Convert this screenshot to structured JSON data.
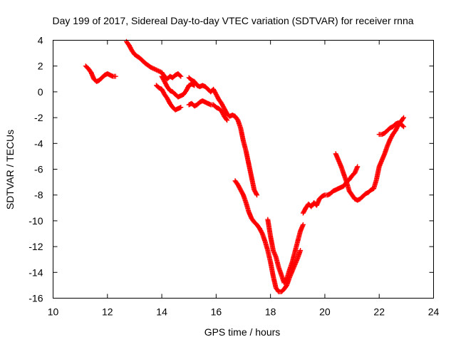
{
  "chart_data": {
    "type": "scatter",
    "title": "Day 199 of 2017, Sidereal Day-to-day VTEC variation (SDTVAR) for receiver rnna",
    "xlabel": "GPS time / hours",
    "ylabel": "SDTVAR / TECUs",
    "xlim": [
      10,
      24
    ],
    "ylim": [
      -16,
      4
    ],
    "x_ticks": [
      10,
      12,
      14,
      16,
      18,
      20,
      22,
      24
    ],
    "y_ticks": [
      4,
      2,
      0,
      -2,
      -4,
      -6,
      -8,
      -10,
      -12,
      -14,
      -16
    ],
    "x_tick_labels": [
      "10",
      "12",
      "14",
      "16",
      "18",
      "20",
      "22",
      "24"
    ],
    "y_tick_labels": [
      "4",
      "2",
      "0",
      "-2",
      "-4",
      "-6",
      "-8",
      "-10",
      "-12",
      "-14",
      "-16"
    ],
    "grid": false,
    "marker": "plus",
    "marker_color": "#ff0000",
    "series": [
      {
        "segments": [
          [
            [
              11.2,
              2.0
            ],
            [
              11.3,
              1.8
            ],
            [
              11.4,
              1.5
            ],
            [
              11.5,
              1.0
            ],
            [
              11.6,
              0.8
            ],
            [
              11.7,
              0.9
            ],
            [
              11.8,
              1.1
            ],
            [
              11.9,
              1.3
            ],
            [
              12.0,
              1.4
            ],
            [
              12.1,
              1.3
            ],
            [
              12.2,
              1.2
            ],
            [
              12.3,
              1.2
            ]
          ],
          [
            [
              12.7,
              3.9
            ],
            [
              12.8,
              3.6
            ],
            [
              12.9,
              3.2
            ],
            [
              13.0,
              2.9
            ],
            [
              13.2,
              2.6
            ],
            [
              13.4,
              2.2
            ],
            [
              13.6,
              1.9
            ],
            [
              13.8,
              1.7
            ],
            [
              14.0,
              1.5
            ],
            [
              14.1,
              1.2
            ],
            [
              14.2,
              1.0
            ],
            [
              14.3,
              1.2
            ],
            [
              14.4,
              1.1
            ],
            [
              14.5,
              1.3
            ],
            [
              14.6,
              1.4
            ],
            [
              14.7,
              1.2
            ]
          ],
          [
            [
              13.8,
              0.5
            ],
            [
              13.9,
              0.3
            ],
            [
              14.0,
              0.2
            ],
            [
              14.1,
              -0.2
            ],
            [
              14.2,
              -0.5
            ],
            [
              14.3,
              -0.9
            ],
            [
              14.4,
              -1.2
            ],
            [
              14.5,
              -1.4
            ],
            [
              14.6,
              -1.3
            ],
            [
              14.7,
              -1.2
            ]
          ],
          [
            [
              14.0,
              1.2
            ],
            [
              14.1,
              0.8
            ],
            [
              14.2,
              0.4
            ],
            [
              14.3,
              0.1
            ],
            [
              14.4,
              0.0
            ],
            [
              14.5,
              -0.2
            ],
            [
              14.6,
              -0.4
            ],
            [
              14.7,
              -0.3
            ],
            [
              14.8,
              -0.2
            ],
            [
              14.9,
              0.1
            ],
            [
              15.0,
              0.5
            ],
            [
              15.1,
              0.6
            ],
            [
              15.2,
              0.5
            ]
          ],
          [
            [
              15.0,
              1.1
            ],
            [
              15.1,
              0.9
            ],
            [
              15.2,
              0.8
            ],
            [
              15.3,
              0.5
            ],
            [
              15.4,
              0.4
            ],
            [
              15.5,
              0.5
            ],
            [
              15.6,
              0.4
            ],
            [
              15.7,
              0.2
            ],
            [
              15.8,
              0.0
            ],
            [
              15.9,
              0.2
            ],
            [
              16.0,
              -0.2
            ],
            [
              16.1,
              -0.6
            ],
            [
              16.2,
              -0.9
            ],
            [
              16.3,
              -1.3
            ],
            [
              16.4,
              -1.7
            ],
            [
              16.5,
              -1.9
            ],
            [
              16.6,
              -1.8
            ],
            [
              16.7,
              -1.9
            ],
            [
              16.8,
              -2.2
            ],
            [
              16.9,
              -2.8
            ],
            [
              17.0,
              -3.8
            ],
            [
              17.1,
              -4.6
            ],
            [
              17.2,
              -5.6
            ],
            [
              17.3,
              -6.6
            ],
            [
              17.4,
              -7.6
            ],
            [
              17.5,
              -8.0
            ]
          ],
          [
            [
              15.0,
              -1.0
            ],
            [
              15.1,
              -0.9
            ],
            [
              15.2,
              -1.1
            ],
            [
              15.3,
              -1.0
            ],
            [
              15.4,
              -0.8
            ],
            [
              15.5,
              -0.7
            ],
            [
              15.6,
              -0.8
            ],
            [
              15.7,
              -0.9
            ],
            [
              15.8,
              -1.0
            ],
            [
              15.9,
              -1.0
            ],
            [
              16.0,
              -1.2
            ],
            [
              16.1,
              -1.3
            ],
            [
              16.2,
              -1.5
            ],
            [
              16.3,
              -1.9
            ],
            [
              16.4,
              -2.2
            ]
          ],
          [
            [
              16.7,
              -6.9
            ],
            [
              16.8,
              -7.2
            ],
            [
              16.9,
              -7.6
            ],
            [
              17.0,
              -8.0
            ],
            [
              17.1,
              -8.6
            ],
            [
              17.2,
              -9.3
            ],
            [
              17.3,
              -9.8
            ],
            [
              17.4,
              -10.1
            ],
            [
              17.5,
              -10.3
            ],
            [
              17.6,
              -10.6
            ],
            [
              17.7,
              -11.0
            ],
            [
              17.8,
              -11.6
            ],
            [
              17.9,
              -12.3
            ],
            [
              18.0,
              -13.2
            ],
            [
              18.1,
              -14.3
            ],
            [
              18.2,
              -15.2
            ],
            [
              18.3,
              -15.5
            ],
            [
              18.4,
              -15.5
            ],
            [
              18.5,
              -15.3
            ],
            [
              18.6,
              -15.0
            ],
            [
              18.7,
              -14.4
            ],
            [
              18.8,
              -13.9
            ],
            [
              18.9,
              -13.4
            ],
            [
              19.0,
              -12.9
            ],
            [
              19.1,
              -12.3
            ]
          ],
          [
            [
              17.9,
              -9.9
            ],
            [
              18.0,
              -11.2
            ],
            [
              18.1,
              -12.3
            ],
            [
              18.2,
              -12.8
            ],
            [
              18.3,
              -13.6
            ],
            [
              18.4,
              -14.2
            ],
            [
              18.5,
              -14.8
            ],
            [
              18.6,
              -14.5
            ],
            [
              18.7,
              -13.8
            ],
            [
              18.8,
              -13.2
            ],
            [
              18.9,
              -12.4
            ],
            [
              19.0,
              -11.6
            ],
            [
              19.1,
              -10.8
            ],
            [
              19.2,
              -10.3
            ]
          ],
          [
            [
              19.2,
              -9.4
            ],
            [
              19.3,
              -9.0
            ],
            [
              19.4,
              -8.7
            ],
            [
              19.5,
              -8.9
            ],
            [
              19.6,
              -8.6
            ],
            [
              19.7,
              -8.8
            ],
            [
              19.8,
              -8.3
            ],
            [
              19.9,
              -8.1
            ],
            [
              20.0,
              -8.0
            ],
            [
              20.1,
              -8.0
            ],
            [
              20.2,
              -7.9
            ],
            [
              20.3,
              -7.7
            ],
            [
              20.4,
              -7.6
            ],
            [
              20.5,
              -7.5
            ],
            [
              20.6,
              -7.4
            ],
            [
              20.7,
              -7.3
            ],
            [
              20.8,
              -7.0
            ],
            [
              20.9,
              -6.8
            ],
            [
              21.0,
              -6.5
            ],
            [
              21.1,
              -6.3
            ],
            [
              21.2,
              -5.8
            ]
          ],
          [
            [
              20.4,
              -4.8
            ],
            [
              20.5,
              -5.3
            ],
            [
              20.6,
              -5.8
            ],
            [
              20.7,
              -6.4
            ],
            [
              20.8,
              -7.0
            ],
            [
              20.9,
              -7.7
            ],
            [
              21.0,
              -8.0
            ],
            [
              21.1,
              -8.3
            ],
            [
              21.2,
              -8.4
            ],
            [
              21.3,
              -8.3
            ],
            [
              21.4,
              -8.1
            ],
            [
              21.5,
              -7.9
            ],
            [
              21.6,
              -7.8
            ],
            [
              21.7,
              -7.6
            ],
            [
              21.8,
              -7.5
            ],
            [
              21.9,
              -6.8
            ],
            [
              22.0,
              -5.8
            ],
            [
              22.1,
              -5.3
            ],
            [
              22.2,
              -4.8
            ],
            [
              22.3,
              -4.2
            ],
            [
              22.4,
              -3.7
            ],
            [
              22.5,
              -3.3
            ],
            [
              22.6,
              -3.0
            ],
            [
              22.7,
              -2.6
            ],
            [
              22.8,
              -2.3
            ],
            [
              22.9,
              -2.0
            ]
          ],
          [
            [
              22.0,
              -3.3
            ],
            [
              22.1,
              -3.3
            ],
            [
              22.2,
              -3.2
            ],
            [
              22.3,
              -3.0
            ],
            [
              22.4,
              -2.8
            ],
            [
              22.5,
              -2.7
            ],
            [
              22.6,
              -2.5
            ],
            [
              22.7,
              -2.4
            ],
            [
              22.8,
              -2.5
            ],
            [
              22.9,
              -2.7
            ]
          ]
        ]
      }
    ]
  }
}
